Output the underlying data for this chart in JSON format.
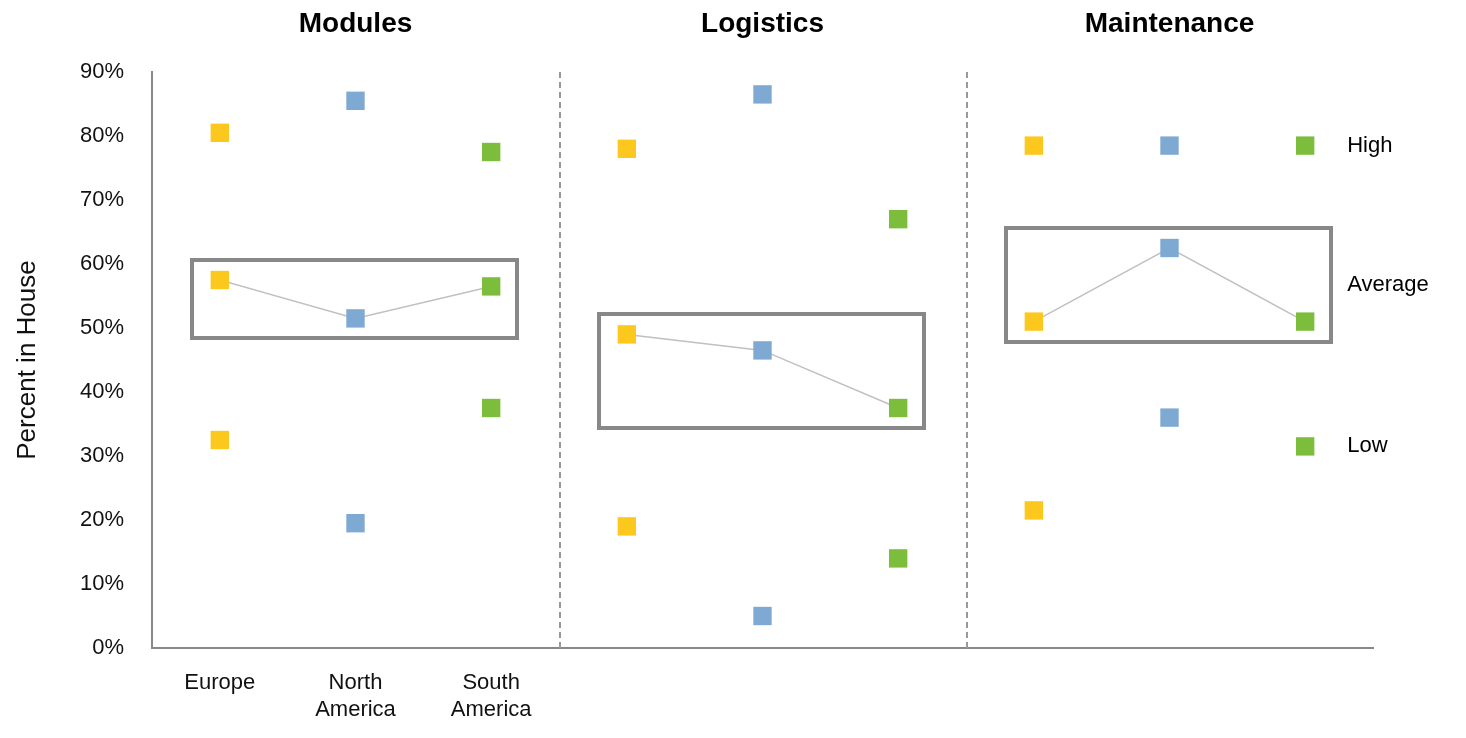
{
  "chart_data": {
    "type": "scatter",
    "ylabel": "Percent in House",
    "categories": [
      "Europe",
      "North America",
      "South America",
      null,
      null,
      null,
      null,
      null,
      null
    ],
    "ylim": [
      0,
      90
    ],
    "yticks": [
      {
        "value": 0,
        "label": "0%"
      },
      {
        "value": 10,
        "label": "10%"
      },
      {
        "value": 20,
        "label": "20%"
      },
      {
        "value": 30,
        "label": "30%"
      },
      {
        "value": 40,
        "label": "40%"
      },
      {
        "value": 50,
        "label": "50%"
      },
      {
        "value": 60,
        "label": "60%"
      },
      {
        "value": 70,
        "label": "70%"
      },
      {
        "value": 80,
        "label": "80%"
      },
      {
        "value": 90,
        "label": "90%"
      }
    ],
    "marker": "square",
    "annotations": [
      "Modules",
      "Logistics",
      "Maintenance"
    ],
    "series": [
      {
        "name": "High",
        "colors": [
          "#fcc81e",
          "#7ea9d2",
          "#7cbd3c",
          "#fcc81e",
          "#7ea9d2",
          "#7cbd3c",
          "#fcc81e",
          "#7ea9d2",
          "#7cbd3c"
        ],
        "values": [
          80.5,
          85.5,
          77.5,
          78,
          86.5,
          67,
          78.5,
          78.5,
          78.5
        ]
      },
      {
        "type": "line",
        "color": "#c0c0c0",
        "colors": [
          "#fcc81e",
          "#7ea9d2",
          "#7cbd3c",
          null,
          null,
          null,
          null,
          null,
          null
        ],
        "values": [
          57.5,
          51.5,
          56.5,
          null,
          null,
          null,
          null,
          null,
          null
        ]
      },
      {
        "type": "line",
        "color": "#c0c0c0",
        "colors": [
          null,
          null,
          null,
          "#fcc81e",
          "#7ea9d2",
          "#7cbd3c",
          null,
          null,
          null
        ],
        "values": [
          null,
          null,
          null,
          49,
          46.5,
          37.5,
          null,
          null,
          null
        ]
      },
      {
        "type": "line",
        "name": "Average",
        "color": "#c0c0c0",
        "colors": [
          null,
          null,
          null,
          null,
          null,
          null,
          "#fcc81e",
          "#7ea9d2",
          "#7cbd3c"
        ],
        "values": [
          null,
          null,
          null,
          null,
          null,
          null,
          51,
          62.5,
          51
        ]
      },
      {
        "name": "Low",
        "colors": [
          "#fcc81e",
          "#7ea9d2",
          "#7cbd3c",
          "#fcc81e",
          "#7ea9d2",
          "#7cbd3c",
          "#fcc81e",
          "#7ea9d2",
          "#7cbd3c"
        ],
        "values": [
          32.5,
          19.5,
          37.5,
          19,
          5,
          14,
          21.5,
          36,
          31.5
        ]
      }
    ]
  }
}
